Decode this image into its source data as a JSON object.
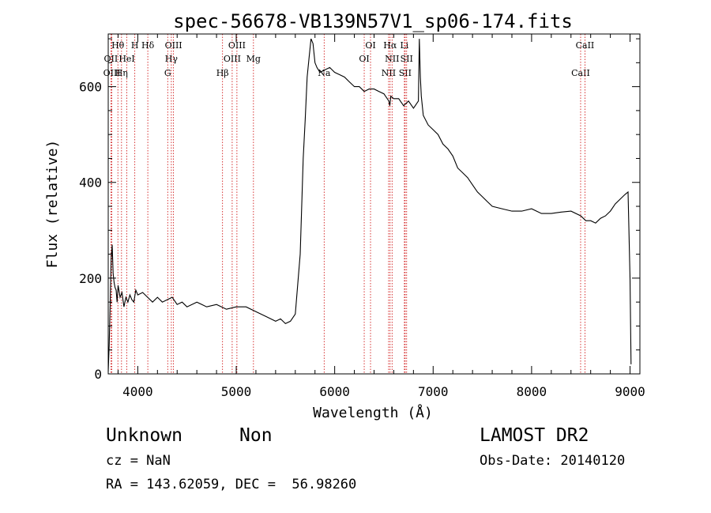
{
  "chart_data": {
    "type": "line",
    "title": "spec-56678-VB139N57V1_sp06-174.fits",
    "xlabel": "Wavelength (Å)",
    "ylabel": "Flux (relative)",
    "xlim": [
      3700,
      9100
    ],
    "ylim": [
      0,
      710
    ],
    "x_ticks": [
      4000,
      5000,
      6000,
      7000,
      8000,
      9000
    ],
    "y_ticks": [
      0,
      200,
      400,
      600
    ],
    "grid": false,
    "line_color": "#000000",
    "marker_color": "#cc0000",
    "series": [
      {
        "x": [
          3700,
          3710,
          3720,
          3730,
          3740,
          3750,
          3760,
          3770,
          3780,
          3790,
          3800,
          3820,
          3840,
          3860,
          3880,
          3900,
          3920,
          3940,
          3960,
          3980,
          4000,
          4050,
          4100,
          4150,
          4200,
          4250,
          4300,
          4350,
          4400,
          4450,
          4500,
          4600,
          4700,
          4800,
          4900,
          5000,
          5100,
          5200,
          5300,
          5400,
          5450,
          5500,
          5550,
          5600,
          5650,
          5680,
          5700,
          5720,
          5740,
          5760,
          5780,
          5800,
          5820,
          5850,
          5900,
          5950,
          6000,
          6050,
          6100,
          6150,
          6200,
          6250,
          6300,
          6350,
          6400,
          6450,
          6500,
          6550,
          6560,
          6570,
          6600,
          6650,
          6700,
          6750,
          6800,
          6850,
          6860,
          6870,
          6880,
          6900,
          6950,
          7000,
          7050,
          7100,
          7150,
          7200,
          7250,
          7300,
          7350,
          7400,
          7450,
          7500,
          7550,
          7600,
          7700,
          7800,
          7900,
          8000,
          8100,
          8200,
          8300,
          8400,
          8500,
          8550,
          8600,
          8650,
          8700,
          8750,
          8800,
          8850,
          8900,
          8950,
          8980,
          9000,
          9010
        ],
        "y": [
          5,
          60,
          150,
          240,
          270,
          210,
          190,
          180,
          175,
          150,
          185,
          160,
          170,
          140,
          160,
          150,
          165,
          155,
          150,
          175,
          165,
          170,
          160,
          150,
          160,
          150,
          155,
          160,
          145,
          150,
          140,
          150,
          140,
          145,
          135,
          140,
          140,
          130,
          120,
          110,
          115,
          105,
          110,
          125,
          250,
          450,
          530,
          620,
          660,
          700,
          690,
          650,
          640,
          630,
          635,
          640,
          630,
          625,
          620,
          610,
          600,
          600,
          590,
          595,
          595,
          590,
          585,
          570,
          560,
          580,
          575,
          575,
          560,
          570,
          555,
          570,
          700,
          620,
          580,
          540,
          520,
          510,
          500,
          480,
          470,
          455,
          430,
          420,
          410,
          395,
          380,
          370,
          360,
          350,
          345,
          340,
          340,
          345,
          335,
          335,
          338,
          340,
          330,
          320,
          320,
          315,
          325,
          330,
          340,
          355,
          365,
          375,
          380,
          200,
          20
        ]
      }
    ],
    "line_markers": [
      {
        "label": "Hθ",
        "x": 3798
      },
      {
        "label": "OII",
        "x": 3727
      },
      {
        "label": "OIII",
        "x": 3737
      },
      {
        "label": "H",
        "x": 3970
      },
      {
        "label": "HeI",
        "x": 3889
      },
      {
        "label": "Hη",
        "x": 3835
      },
      {
        "label": "Hδ",
        "x": 4102
      },
      {
        "label": "Hγ",
        "x": 4341
      },
      {
        "label": "G",
        "x": 4304
      },
      {
        "label": "OIII",
        "x": 4363
      },
      {
        "label": "OIII",
        "x": 4959
      },
      {
        "label": "Hβ",
        "x": 4861
      },
      {
        "label": "OIII",
        "x": 5007
      },
      {
        "label": "Mg",
        "x": 5175
      },
      {
        "label": "Na",
        "x": 5893
      },
      {
        "label": "OI",
        "x": 6364
      },
      {
        "label": "OI",
        "x": 6300
      },
      {
        "label": "NII",
        "x": 6548
      },
      {
        "label": "Li",
        "x": 6708
      },
      {
        "label": "NII",
        "x": 6583
      },
      {
        "label": "SII",
        "x": 6716
      },
      {
        "label": "Hα",
        "x": 6563
      },
      {
        "label": "SII",
        "x": 6731
      },
      {
        "label": "CaII",
        "x": 8498
      },
      {
        "label": "CaII",
        "x": 8542
      }
    ]
  },
  "info": {
    "class_label": "Unknown",
    "subclass_label": "Non",
    "survey": "LAMOST DR2",
    "cz_text": "cz = NaN",
    "obs_date_text": "Obs-Date: 20140120",
    "radec_text": "RA = 143.62059, DEC =  56.98260"
  }
}
